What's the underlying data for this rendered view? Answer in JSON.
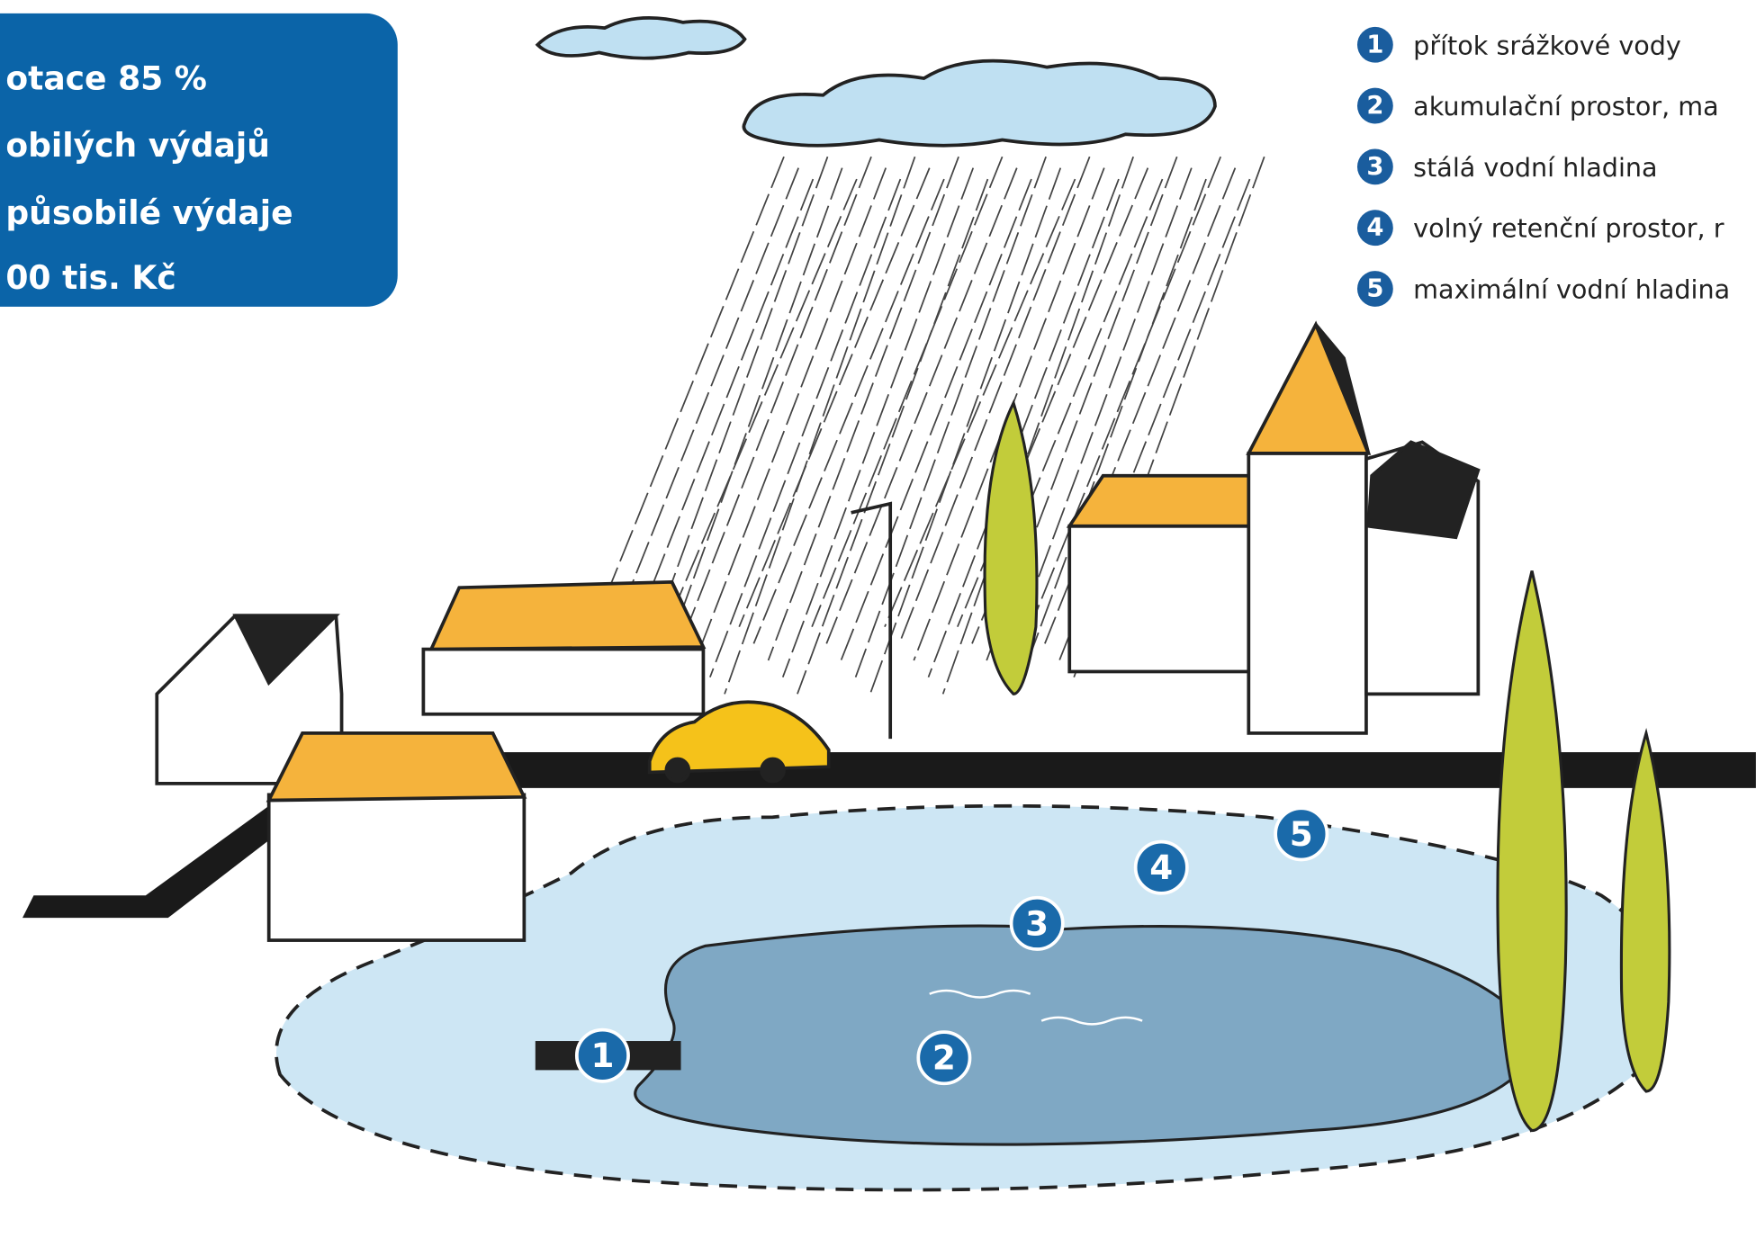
{
  "callout": {
    "lines": [
      "otace 85 %",
      "obilých výdajů",
      "působilé výdaje",
      "00 tis. Kč"
    ]
  },
  "legend": [
    {
      "number": "1",
      "text": "přítok srážkové vody"
    },
    {
      "number": "2",
      "text": "akumulační prostor, ma"
    },
    {
      "number": "3",
      "text": "stálá vodní hladina"
    },
    {
      "number": "4",
      "text": "volný retenční prostor, r"
    },
    {
      "number": "5",
      "text": "maximální vodní hladina"
    }
  ],
  "markers": [
    "1",
    "2",
    "3",
    "4",
    "5"
  ]
}
